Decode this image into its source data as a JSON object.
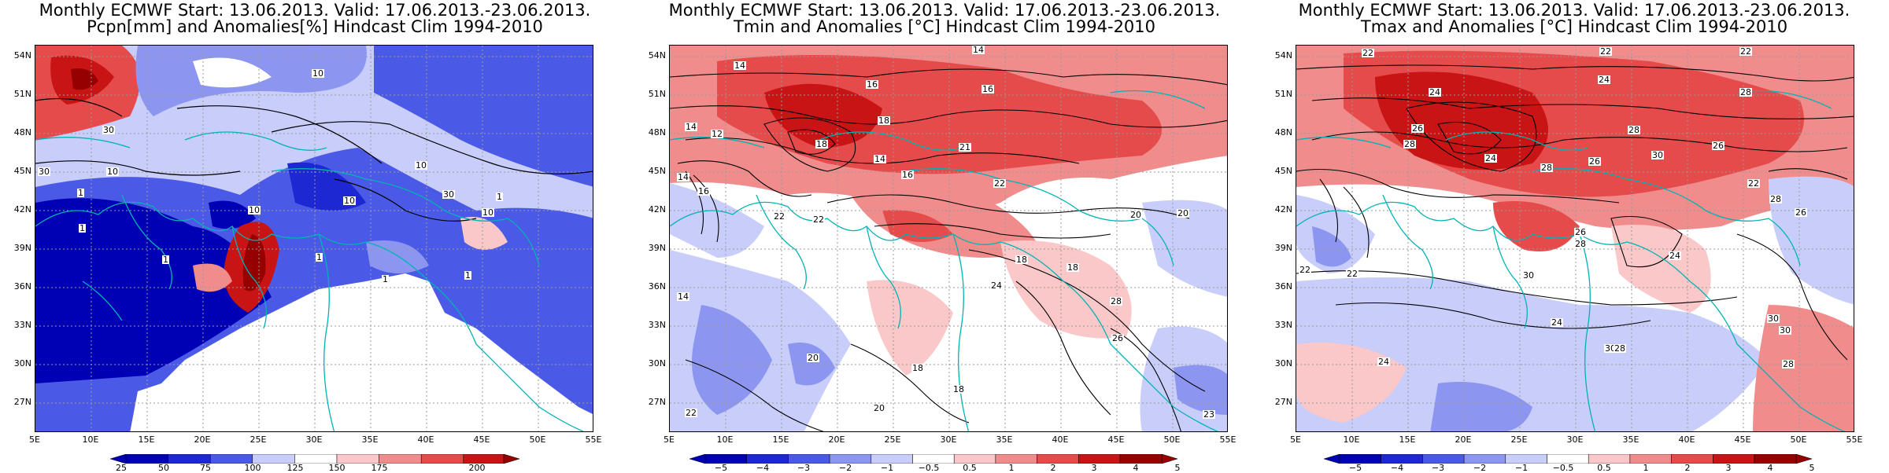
{
  "panels": [
    {
      "title_line1": "Monthly ECMWF Start: 13.06.2013. Valid: 17.06.2013.-23.06.2013.",
      "title_line2": "Pcpn[mm] and Anomalies[%] Hindcast Clim 1994-2010",
      "colorbar": {
        "colors": [
          "#0000b4",
          "#1e28d2",
          "#4b5ae6",
          "#8c96f0",
          "#c8cdfa",
          "#ffffff",
          "#fac8c8",
          "#f08c8c",
          "#e64b4b",
          "#c81414",
          "#960000"
        ],
        "ticks": [
          "25",
          "50",
          "75",
          "100",
          "125",
          "150",
          "175",
          "200"
        ]
      },
      "contour_labels": [
        "10",
        "30",
        "30",
        "10",
        "1",
        "10",
        "10",
        "1",
        "10",
        "30",
        "10",
        "1",
        "1",
        "1",
        "1",
        "1"
      ]
    },
    {
      "title_line1": "Monthly ECMWF Start: 13.06.2013. Valid: 17.06.2013.-23.06.2013.",
      "title_line2": "Tmin and Anomalies [°C] Hindcast Clim 1994-2010",
      "colorbar": {
        "colors": [
          "#0000b4",
          "#1e28d2",
          "#4b5ae6",
          "#8c96f0",
          "#c8cdfa",
          "#ffffff",
          "#fac8c8",
          "#f08c8c",
          "#e64b4b",
          "#c81414",
          "#960000"
        ],
        "ticks": [
          "−5",
          "−4",
          "−3",
          "−2",
          "−1",
          "−0.5",
          "0.5",
          "1",
          "2",
          "3",
          "4",
          "5"
        ]
      },
      "contour_labels": [
        "14",
        "14",
        "16",
        "16",
        "14",
        "12",
        "18",
        "18",
        "14",
        "16",
        "21",
        "22",
        "14",
        "16",
        "22",
        "22",
        "20",
        "20",
        "14",
        "18",
        "18",
        "24",
        "28",
        "20",
        "26",
        "18",
        "18",
        "20",
        "22",
        "23"
      ]
    },
    {
      "title_line1": "Monthly ECMWF Start: 13.06.2013. Valid: 17.06.2013.-23.06.2013.",
      "title_line2": "Tmax and Anomalies [°C] Hindcast Clim 1994-2010",
      "colorbar": {
        "colors": [
          "#0000b4",
          "#1e28d2",
          "#4b5ae6",
          "#8c96f0",
          "#c8cdfa",
          "#ffffff",
          "#fac8c8",
          "#f08c8c",
          "#e64b4b",
          "#c81414",
          "#960000"
        ],
        "ticks": [
          "−5",
          "−4",
          "−3",
          "−2",
          "−1",
          "−0.5",
          "0.5",
          "1",
          "2",
          "3",
          "4",
          "5"
        ]
      },
      "contour_labels": [
        "22",
        "22",
        "22",
        "24",
        "26",
        "24",
        "28",
        "28",
        "26",
        "28",
        "24",
        "28",
        "30",
        "26",
        "28",
        "22",
        "22",
        "26",
        "28",
        "24",
        "22",
        "30",
        "24",
        "30",
        "28",
        "30",
        "24",
        "30",
        "28",
        "26"
      ]
    }
  ],
  "axes": {
    "lat_labels": [
      "54N",
      "51N",
      "48N",
      "45N",
      "42N",
      "39N",
      "36N",
      "33N",
      "30N",
      "27N"
    ],
    "lon_labels": [
      "5E",
      "10E",
      "15E",
      "20E",
      "25E",
      "30E",
      "35E",
      "40E",
      "45E",
      "50E",
      "55E"
    ]
  },
  "colors": {
    "coastline": "#00b4b4",
    "grid": "#9a9a9a",
    "contour": "#000000"
  }
}
